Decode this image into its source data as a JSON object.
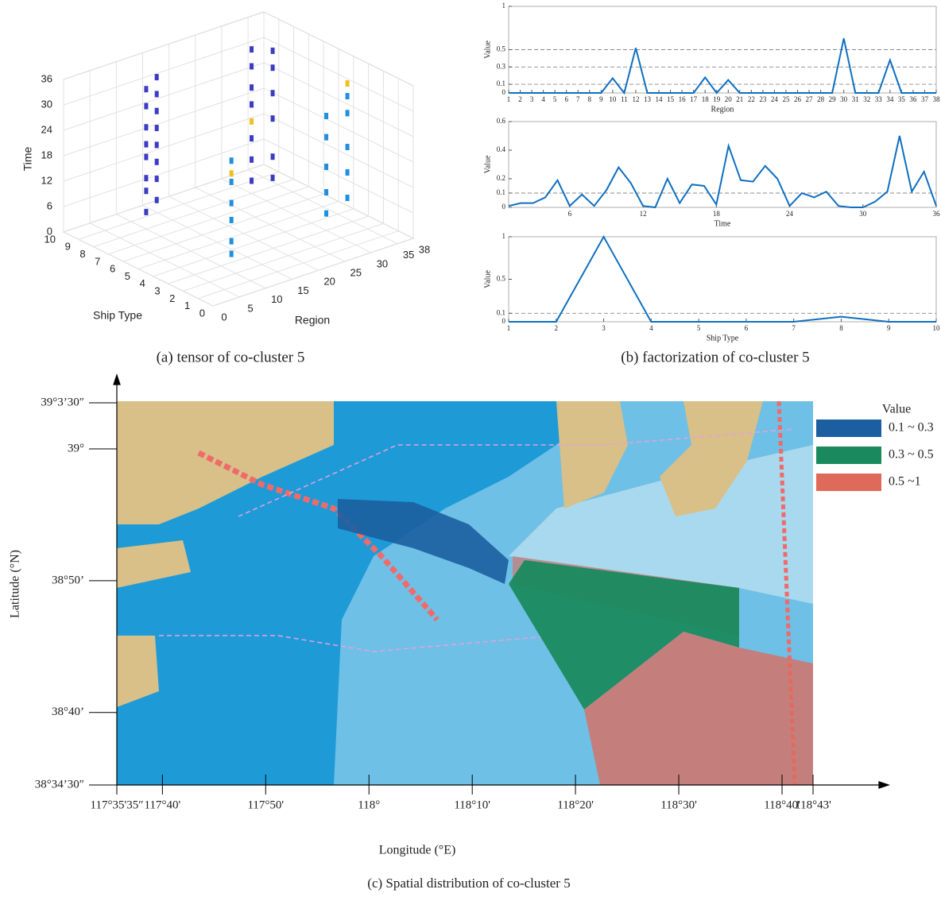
{
  "chart_data": [
    {
      "type": "scatter3d",
      "xlabel": "Region",
      "ylabel": "Ship Type",
      "zlabel": "Time",
      "xlim": [
        0,
        38
      ],
      "ylim": [
        0,
        10
      ],
      "zlim": [
        0,
        36
      ],
      "xticks": [
        0,
        5,
        10,
        15,
        20,
        25,
        30,
        35,
        38
      ],
      "yticks": [
        0,
        1,
        2,
        3,
        4,
        5,
        6,
        7,
        8,
        9,
        10
      ],
      "zticks": [
        0,
        6,
        12,
        18,
        24,
        30,
        36
      ],
      "series": [
        {
          "color": "#3b3bc4",
          "x": [
            10,
            10,
            10,
            10,
            10,
            10,
            10,
            10,
            12,
            12,
            12,
            12,
            12,
            12,
            12,
            12,
            30,
            30,
            30,
            30,
            30,
            30,
            30,
            34,
            34,
            34,
            34,
            34,
            34
          ],
          "y": [
            8,
            8,
            8,
            8,
            8,
            8,
            8,
            8,
            8,
            8,
            8,
            8,
            8,
            8,
            8,
            8,
            8,
            8,
            8,
            8,
            8,
            8,
            8,
            8,
            8,
            8,
            8,
            8,
            8
          ],
          "z": [
            4,
            9,
            12,
            17,
            20,
            24,
            29,
            33,
            6,
            11,
            15,
            19,
            23,
            27,
            31,
            35,
            3,
            8,
            13,
            21,
            25,
            30,
            34,
            2,
            7,
            16,
            22,
            28,
            32
          ]
        },
        {
          "color": "#1f8fe0",
          "x": [
            12,
            12,
            12,
            12,
            12,
            12,
            30,
            30,
            30,
            30,
            30,
            34,
            34,
            34,
            34,
            34
          ],
          "y": [
            3,
            3,
            3,
            3,
            3,
            3,
            3,
            3,
            3,
            3,
            3,
            3,
            3,
            3,
            3,
            3
          ],
          "z": [
            2,
            5,
            10,
            14,
            19,
            24,
            4,
            9,
            15,
            22,
            27,
            6,
            12,
            18,
            26,
            30
          ]
        },
        {
          "color": "#f0c020",
          "x": [
            12,
            34,
            30
          ],
          "y": [
            3,
            3,
            8
          ],
          "z": [
            21,
            33,
            17
          ]
        }
      ]
    },
    {
      "type": "line",
      "xlabel": "Region",
      "ylabel": "Value",
      "x": [
        1,
        2,
        3,
        4,
        5,
        6,
        7,
        8,
        9,
        10,
        11,
        12,
        13,
        14,
        15,
        16,
        17,
        18,
        19,
        20,
        21,
        22,
        23,
        24,
        25,
        26,
        27,
        28,
        29,
        30,
        31,
        32,
        33,
        34,
        35,
        36,
        37,
        38
      ],
      "series": [
        {
          "color": "#0f6fc0",
          "values": [
            0,
            0,
            0,
            0,
            0,
            0,
            0,
            0,
            0,
            0.17,
            0,
            0.52,
            0,
            0,
            0,
            0,
            0,
            0.18,
            0,
            0.15,
            0,
            0,
            0,
            0,
            0,
            0,
            0,
            0,
            0,
            0.63,
            0,
            0,
            0,
            0.38,
            0,
            0,
            0,
            0
          ]
        }
      ],
      "xlim": [
        1,
        38
      ],
      "ylim": [
        0,
        1
      ],
      "xticks": [
        1,
        2,
        3,
        4,
        5,
        6,
        7,
        8,
        9,
        10,
        11,
        12,
        13,
        14,
        15,
        16,
        17,
        18,
        19,
        20,
        21,
        22,
        23,
        24,
        25,
        26,
        27,
        28,
        29,
        30,
        31,
        32,
        33,
        34,
        35,
        36,
        37,
        38
      ],
      "yticks": [
        0,
        0.1,
        0.3,
        0.5,
        1
      ],
      "reference_lines": [
        0.1,
        0.3,
        0.5
      ]
    },
    {
      "type": "line",
      "xlabel": "Time",
      "ylabel": "Value",
      "x": [
        1,
        2,
        3,
        4,
        5,
        6,
        7,
        8,
        9,
        10,
        11,
        12,
        13,
        14,
        15,
        16,
        17,
        18,
        19,
        20,
        21,
        22,
        23,
        24,
        25,
        26,
        27,
        28,
        29,
        30,
        31,
        32,
        33,
        34,
        35,
        36
      ],
      "series": [
        {
          "color": "#0f6fc0",
          "values": [
            0.01,
            0.03,
            0.03,
            0.07,
            0.19,
            0.01,
            0.09,
            0.01,
            0.12,
            0.28,
            0.17,
            0.01,
            0,
            0.2,
            0.03,
            0.16,
            0.15,
            0.02,
            0.43,
            0.19,
            0.18,
            0.29,
            0.2,
            0.01,
            0.1,
            0.07,
            0.11,
            0.01,
            0,
            0,
            0.04,
            0.11,
            0.5,
            0.11,
            0.25,
            0.01
          ]
        }
      ],
      "xlim": [
        1,
        36
      ],
      "ylim": [
        0,
        0.6
      ],
      "xticks": [
        6,
        12,
        18,
        24,
        30,
        36
      ],
      "yticks": [
        0,
        0.1,
        0.2,
        0.4,
        0.6
      ],
      "reference_lines": [
        0.1
      ]
    },
    {
      "type": "line",
      "xlabel": "Ship Type",
      "ylabel": "Value",
      "x": [
        1,
        2,
        3,
        4,
        5,
        6,
        7,
        8,
        9,
        10
      ],
      "series": [
        {
          "color": "#0f6fc0",
          "values": [
            0,
            0,
            1,
            0,
            0,
            0,
            0,
            0.06,
            0,
            0
          ]
        }
      ],
      "xlim": [
        1,
        10
      ],
      "ylim": [
        0,
        1
      ],
      "xticks": [
        1,
        2,
        3,
        4,
        5,
        6,
        7,
        8,
        9,
        10
      ],
      "yticks": [
        0,
        0.1,
        0.5,
        1
      ],
      "reference_lines": [
        0.1
      ]
    },
    {
      "type": "map",
      "xlabel": "Longitude (°E)",
      "ylabel": "Latitude (°N)",
      "xlim": [
        117.5931,
        118.7167
      ],
      "ylim": [
        38.575,
        39.0583
      ],
      "xticks": [
        {
          "value": 117.5931,
          "label": "117°35'35″"
        },
        {
          "value": 117.6667,
          "label": "117°40'"
        },
        {
          "value": 117.8333,
          "label": "117°50'"
        },
        {
          "value": 118,
          "label": "118°"
        },
        {
          "value": 118.1667,
          "label": "118°10'"
        },
        {
          "value": 118.3333,
          "label": "118°20'"
        },
        {
          "value": 118.5,
          "label": "118°30'"
        },
        {
          "value": 118.6667,
          "label": "118°40'"
        },
        {
          "value": 118.7167,
          "label": "118°43'"
        }
      ],
      "yticks": [
        {
          "value": 39.0583,
          "label": "39°3’30″"
        },
        {
          "value": 39,
          "label": "39°"
        },
        {
          "value": 38.8333,
          "label": "38°50’"
        },
        {
          "value": 38.6667,
          "label": "38°40’"
        },
        {
          "value": 38.575,
          "label": "38°34’30″"
        }
      ],
      "legend_title": "Value",
      "legend": [
        {
          "label": "0.1 ~ 0.3",
          "color": "#1c5fa0"
        },
        {
          "label": "0.3 ~ 0.5",
          "color": "#1a8a5e"
        },
        {
          "label": "0.5 ~1",
          "color": "#e06a5a"
        }
      ]
    }
  ],
  "captions": [
    "(a)    tensor of co-cluster 5",
    "(b) factorization of co-cluster 5",
    "(c) Spatial distribution of co-cluster 5"
  ]
}
